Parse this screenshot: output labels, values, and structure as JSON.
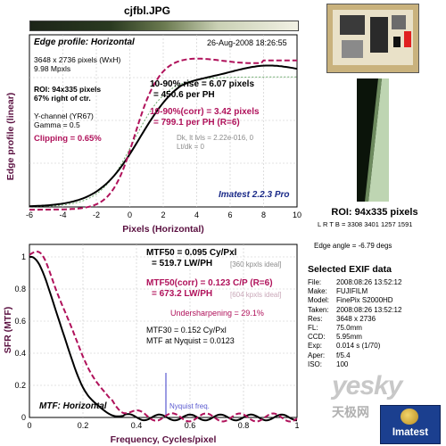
{
  "title": "cjfbl.JPG",
  "edge": {
    "heading": "Edge profile: Horizontal",
    "date": "26-Aug-2008 18:26:55",
    "info": [
      "3648 x 2736 pixels (WxH)",
      "9.98 Mpxls"
    ],
    "roi": [
      "ROI: 94x335 pixels",
      "67% right of ctr."
    ],
    "channel": [
      "Y-channel (YR67)",
      "Gamma = 0.5"
    ],
    "clipping": "Clipping =  0.65%",
    "rise": [
      "10-90% rise = 6.07 pixels",
      "= 450.6 per PH"
    ],
    "corr": [
      "10-90%(corr) = 3.42 pixels",
      "= 799.1 per PH  (R=6)"
    ],
    "dk": [
      "Dk, lt lvls = 2.22e-016, 0",
      "Lt/dk = 0"
    ],
    "brand": "Imatest 2.2.3 Pro",
    "ylabel": "Edge profile (linear)",
    "xlabel": "Pixels (Horizontal)",
    "xticks": [
      "-6",
      "-4",
      "-2",
      "0",
      "2",
      "4",
      "6",
      "8",
      "10"
    ]
  },
  "mtf": {
    "mtf50": [
      "MTF50 = 0.095 Cy/Pxl",
      "= 519.7 LW/PH"
    ],
    "mtf50_ideal": "[360 kpxls ideal]",
    "mtf50c": [
      "MTF50(corr) = 0.123 C/P  (R=6)",
      "= 673.2 LW/PH"
    ],
    "mtf50c_ideal": "[604 kpxls ideal]",
    "under": "Undersharpening = 29.1%",
    "mtf30": "MTF30 = 0.152 Cy/Pxl",
    "nyq_line": "MTF at Nyquist = 0.0123",
    "nyq_label": "Nyquist freq.",
    "heading": "MTF: Horizontal",
    "ylabel": "SFR (MTF)",
    "xlabel": "Frequency, Cycles/pixel",
    "xticks": [
      "0",
      "0.2",
      "0.4",
      "0.6",
      "0.8",
      "1"
    ],
    "yticks": [
      "0",
      "0.2",
      "0.4",
      "0.6",
      "0.8",
      "1"
    ]
  },
  "right": {
    "roi_title": "ROI: 94x335 pixels",
    "roi_coords": "L R T B = 3308 3401 1257 1591",
    "edge_angle": "Edge angle = -6.79 degs",
    "exif_title": "Selected EXIF data",
    "exif": [
      [
        "File:",
        "2008:08:26 13:52:12"
      ],
      [
        "Make:",
        "FUJIFILM"
      ],
      [
        "Model:",
        "FinePix S2000HD"
      ],
      [
        "Taken:",
        "2008:08:26 13:52:12"
      ],
      [
        "Res:",
        "3648 x 2736"
      ],
      [
        "FL:",
        "75.0mm"
      ],
      [
        "CCD:",
        "5.95mm"
      ],
      [
        "Exp:",
        "0.014 s (1/70)"
      ],
      [
        "Aper:",
        "f/5.4"
      ],
      [
        "ISO:",
        "100"
      ]
    ],
    "watermark": "yesky",
    "watermark_cn": "天极网",
    "logo": "Imatest"
  },
  "colors": {
    "accent": "#b0125b",
    "ink": "#000000",
    "muted": "#8c8c8c",
    "nyquist": "#5a5ad0",
    "logo_bg": "#1b3f8f"
  }
}
